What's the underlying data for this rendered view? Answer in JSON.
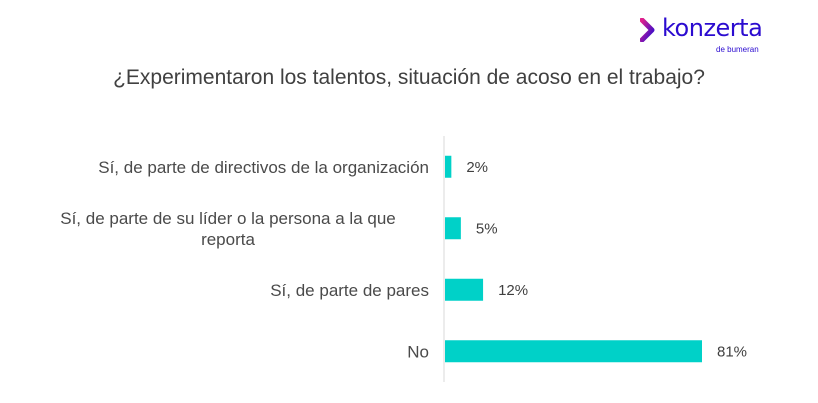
{
  "brand": {
    "name": "konzerta",
    "sub": "de bumeran",
    "accent": "#2b0bd0",
    "mark_gradient": [
      "#e0208c",
      "#2b0bd0"
    ]
  },
  "chart_data": {
    "type": "bar",
    "orientation": "horizontal",
    "title": "¿Experimentaron los talentos, situación de acoso en el trabajo?",
    "categories": [
      [
        "Sí, de parte de directivos de la organización"
      ],
      [
        "Sí, de parte de su líder o la persona a la que",
        "reporta"
      ],
      [
        "Sí, de parte de pares"
      ],
      [
        "No"
      ]
    ],
    "values": [
      2,
      5,
      12,
      81
    ],
    "value_labels": [
      "2%",
      "5%",
      "12%",
      "81%"
    ],
    "xlim": [
      0,
      81
    ],
    "bar_color": "#00d1c8",
    "axis_color": "#d9d9d9",
    "grid": false,
    "legend": "none"
  }
}
